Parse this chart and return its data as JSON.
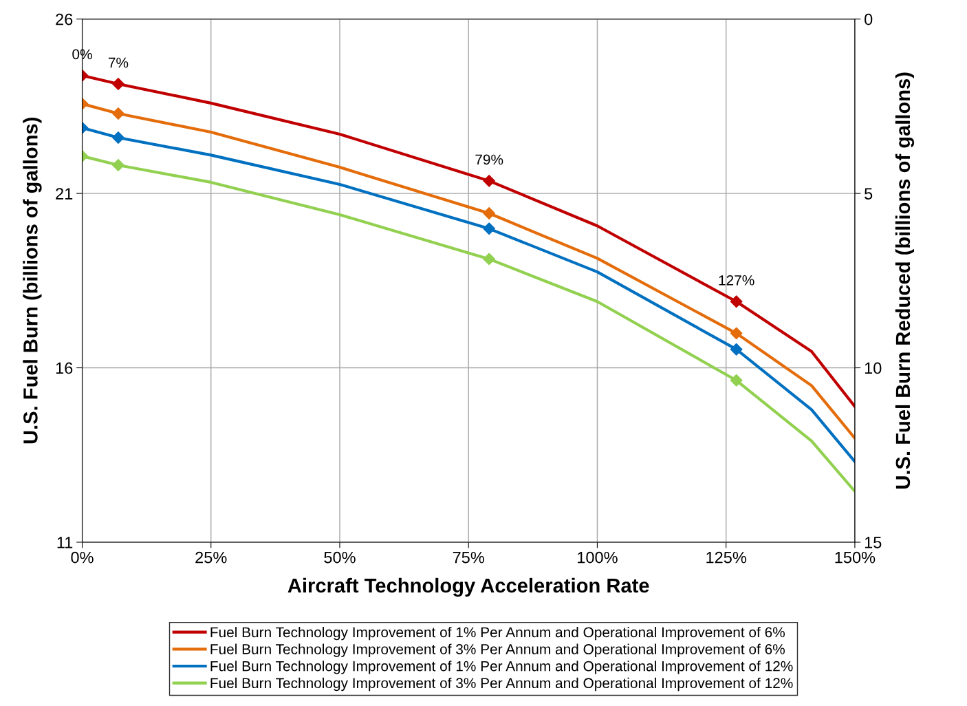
{
  "chart_data": {
    "type": "line",
    "xlabel": "Aircraft Technology Acceleration Rate",
    "ylabel": "U.S. Fuel Burn (billions of gallons)",
    "y2label": "U.S. Fuel Burn Reduced (billions of gallons)",
    "xlim": [
      0,
      150
    ],
    "xticks": [
      {
        "value": 0,
        "label": "0%"
      },
      {
        "value": 25,
        "label": "25%"
      },
      {
        "value": 50,
        "label": "50%"
      },
      {
        "value": 75,
        "label": "75%"
      },
      {
        "value": 100,
        "label": "100%"
      },
      {
        "value": 125,
        "label": "125%"
      },
      {
        "value": 150,
        "label": "150%"
      }
    ],
    "ylim": [
      11,
      26
    ],
    "yticks": [
      11,
      16,
      21,
      26
    ],
    "y2lim": [
      15,
      0
    ],
    "y2ticks": [
      0,
      5,
      10,
      15
    ],
    "grid": true,
    "legend": "bottom",
    "line_style": "solid",
    "series": [
      {
        "name": "Fuel Burn Technology Improvement of 1% Per Annum and Operational Improvement of 6%",
        "color": "#c00000",
        "marker": "none",
        "x": [
          0,
          7,
          25,
          50,
          79,
          100,
          127,
          141.6,
          150
        ],
        "values": [
          24.38,
          24.14,
          23.59,
          22.7,
          21.36,
          20.07,
          17.9,
          16.47,
          14.89
        ]
      },
      {
        "name": "Fuel Burn Technology Improvement of 3% Per Annum and Operational Improvement of 6%",
        "color": "#e46c0a",
        "marker": "none",
        "x": [
          0,
          7,
          25,
          50,
          79,
          100,
          127,
          141.6,
          150
        ],
        "values": [
          23.57,
          23.29,
          22.76,
          21.75,
          20.43,
          19.14,
          16.99,
          15.49,
          13.98
        ]
      },
      {
        "name": "Fuel Burn Technology Improvement of 1% Per Annum and Operational Improvement of 12%",
        "color": "#0070c0",
        "marker": "none",
        "x": [
          0,
          7,
          25,
          50,
          79,
          100,
          127,
          141.6,
          150
        ],
        "values": [
          22.88,
          22.6,
          22.1,
          21.26,
          19.99,
          18.75,
          16.53,
          14.8,
          13.31
        ]
      },
      {
        "name": "Fuel Burn Technology Improvement of 3% Per Annum and Operational Improvement of 12%",
        "color": "#92d050",
        "marker": "none",
        "x": [
          0,
          7,
          25,
          50,
          79,
          100,
          127,
          141.6,
          150
        ],
        "values": [
          22.07,
          21.81,
          21.32,
          20.39,
          19.12,
          17.9,
          15.64,
          13.9,
          12.46
        ]
      },
      {
        "type": "scatter",
        "color": "#c00000",
        "marker": "diamond",
        "x": [
          0,
          7,
          79,
          127
        ],
        "values": [
          24.38,
          24.14,
          21.36,
          17.9
        ]
      },
      {
        "type": "scatter",
        "color": "#e46c0a",
        "marker": "diamond",
        "x": [
          0,
          7,
          79,
          127
        ],
        "values": [
          23.57,
          23.29,
          20.43,
          16.99
        ]
      },
      {
        "type": "scatter",
        "color": "#0070c0",
        "marker": "diamond",
        "x": [
          0,
          7,
          79,
          127
        ],
        "values": [
          22.88,
          22.6,
          19.99,
          16.53
        ]
      },
      {
        "type": "scatter",
        "color": "#92d050",
        "marker": "diamond",
        "x": [
          0,
          7,
          79,
          127
        ],
        "values": [
          22.07,
          21.81,
          19.12,
          15.64
        ]
      }
    ],
    "annotations": [
      {
        "text": "0%",
        "x": 0,
        "y": 24.38
      },
      {
        "text": "7%",
        "x": 7,
        "y": 24.14
      },
      {
        "text": "79%",
        "x": 79,
        "y": 21.36
      },
      {
        "text": "127%",
        "x": 127,
        "y": 17.9
      }
    ]
  }
}
